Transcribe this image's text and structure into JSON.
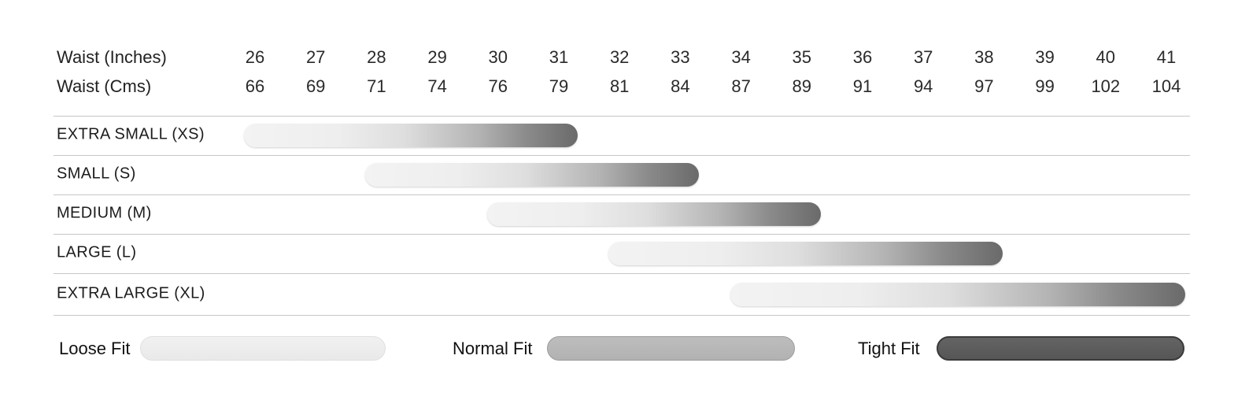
{
  "header": {
    "inches_label": "Waist (Inches)",
    "cms_label": "Waist (Cms)"
  },
  "chart_data": {
    "type": "bar",
    "subtype": "horizontal-range-size-chart",
    "axis": {
      "inches_label": "Waist (Inches)",
      "cms_label": "Waist (Cms)",
      "inches": [
        26,
        27,
        28,
        29,
        30,
        31,
        32,
        33,
        34,
        35,
        36,
        37,
        38,
        39,
        40,
        41
      ],
      "cms": [
        66,
        69,
        71,
        74,
        76,
        79,
        81,
        84,
        87,
        89,
        91,
        94,
        97,
        99,
        102,
        104
      ]
    },
    "sizes": [
      {
        "label": "EXTRA SMALL (XS)",
        "range_inches": [
          26,
          31
        ],
        "range_cms": [
          66,
          79
        ]
      },
      {
        "label": "SMALL (S)",
        "range_inches": [
          28,
          33
        ],
        "range_cms": [
          71,
          84
        ]
      },
      {
        "label": "MEDIUM (M)",
        "range_inches": [
          30,
          35
        ],
        "range_cms": [
          76,
          89
        ]
      },
      {
        "label": "LARGE (L)",
        "range_inches": [
          32,
          38
        ],
        "range_cms": [
          81,
          97
        ]
      },
      {
        "label": "EXTRA LARGE (XL)",
        "range_inches": [
          34,
          41
        ],
        "range_cms": [
          87,
          104
        ]
      }
    ],
    "bar_gradient": {
      "start_color": "#f3f3f3",
      "end_color": "#6a6a6a",
      "meaning": "loose to tight"
    },
    "legend": [
      {
        "label": "Loose Fit",
        "fill": "#eeeeee"
      },
      {
        "label": "Normal Fit",
        "fill": "#b8b8b8"
      },
      {
        "label": "Tight Fit",
        "fill": "#5c5c5c"
      }
    ],
    "grid": "horizontal row dividers only",
    "legend_position": "bottom"
  }
}
